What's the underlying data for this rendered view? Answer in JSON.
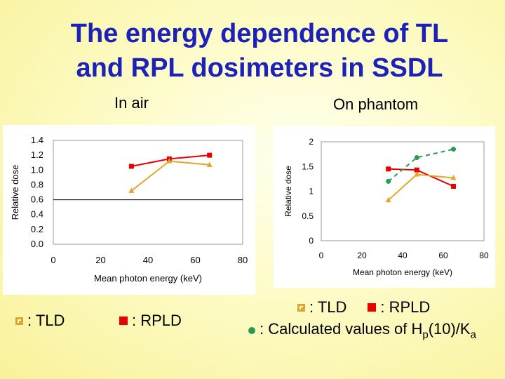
{
  "slide": {
    "title_line1": "The energy dependence of TL",
    "title_line2": "and RPL dosimeters in SSDL",
    "subtitle_left": "In air",
    "subtitle_right": "On phantom"
  },
  "legend_left": {
    "tld": ": TLD",
    "rpld": ": RPLD"
  },
  "legend_right": {
    "tld": ": TLD",
    "rpld": ": RPLD",
    "calc_prefix": ": Calculated values of H",
    "calc_sub1": "p",
    "calc_mid": "(10)/K",
    "calc_sub2": "a"
  },
  "colors": {
    "title": "#1c22b8",
    "tld": "#e1a629",
    "rpld": "#e80000",
    "calc": "#2a9a54"
  },
  "chart_data": [
    {
      "type": "line",
      "xlabel": "Mean photon energy  (keV)",
      "ylabel": "Relative dose",
      "xlim": [
        0,
        80
      ],
      "ylim": [
        0,
        1.4
      ],
      "xticks": [
        "0",
        "20",
        "40",
        "60",
        "80"
      ],
      "yticks": [
        "0.0",
        "0.2",
        "0.4",
        "0.6",
        "0.8",
        "1.0",
        "1.2",
        "1.4"
      ],
      "reference_line": 0.6,
      "series": [
        {
          "key": "rpld",
          "marker": "square",
          "x": [
            33,
            49,
            66
          ],
          "y": [
            1.05,
            1.15,
            1.2
          ]
        },
        {
          "key": "tld",
          "marker": "triangle",
          "x": [
            33,
            49,
            66
          ],
          "y": [
            0.72,
            1.12,
            1.07
          ]
        }
      ]
    },
    {
      "type": "line",
      "xlabel": "Mean photon energy (keV)",
      "ylabel": "Relative dose",
      "xlim": [
        0,
        80
      ],
      "ylim": [
        0,
        2
      ],
      "xticks": [
        "0",
        "20",
        "40",
        "60",
        "80"
      ],
      "yticks": [
        "0",
        "0.5",
        "1",
        "1.5",
        "2"
      ],
      "series": [
        {
          "key": "rpld",
          "marker": "square",
          "x": [
            33,
            47,
            65
          ],
          "y": [
            1.45,
            1.43,
            1.1
          ]
        },
        {
          "key": "tld",
          "marker": "triangle",
          "x": [
            33,
            47,
            65
          ],
          "y": [
            0.82,
            1.34,
            1.27
          ]
        },
        {
          "key": "calc",
          "marker": "circle",
          "dashed": true,
          "x": [
            33,
            47,
            65
          ],
          "y": [
            1.2,
            1.68,
            1.85
          ]
        }
      ]
    }
  ]
}
